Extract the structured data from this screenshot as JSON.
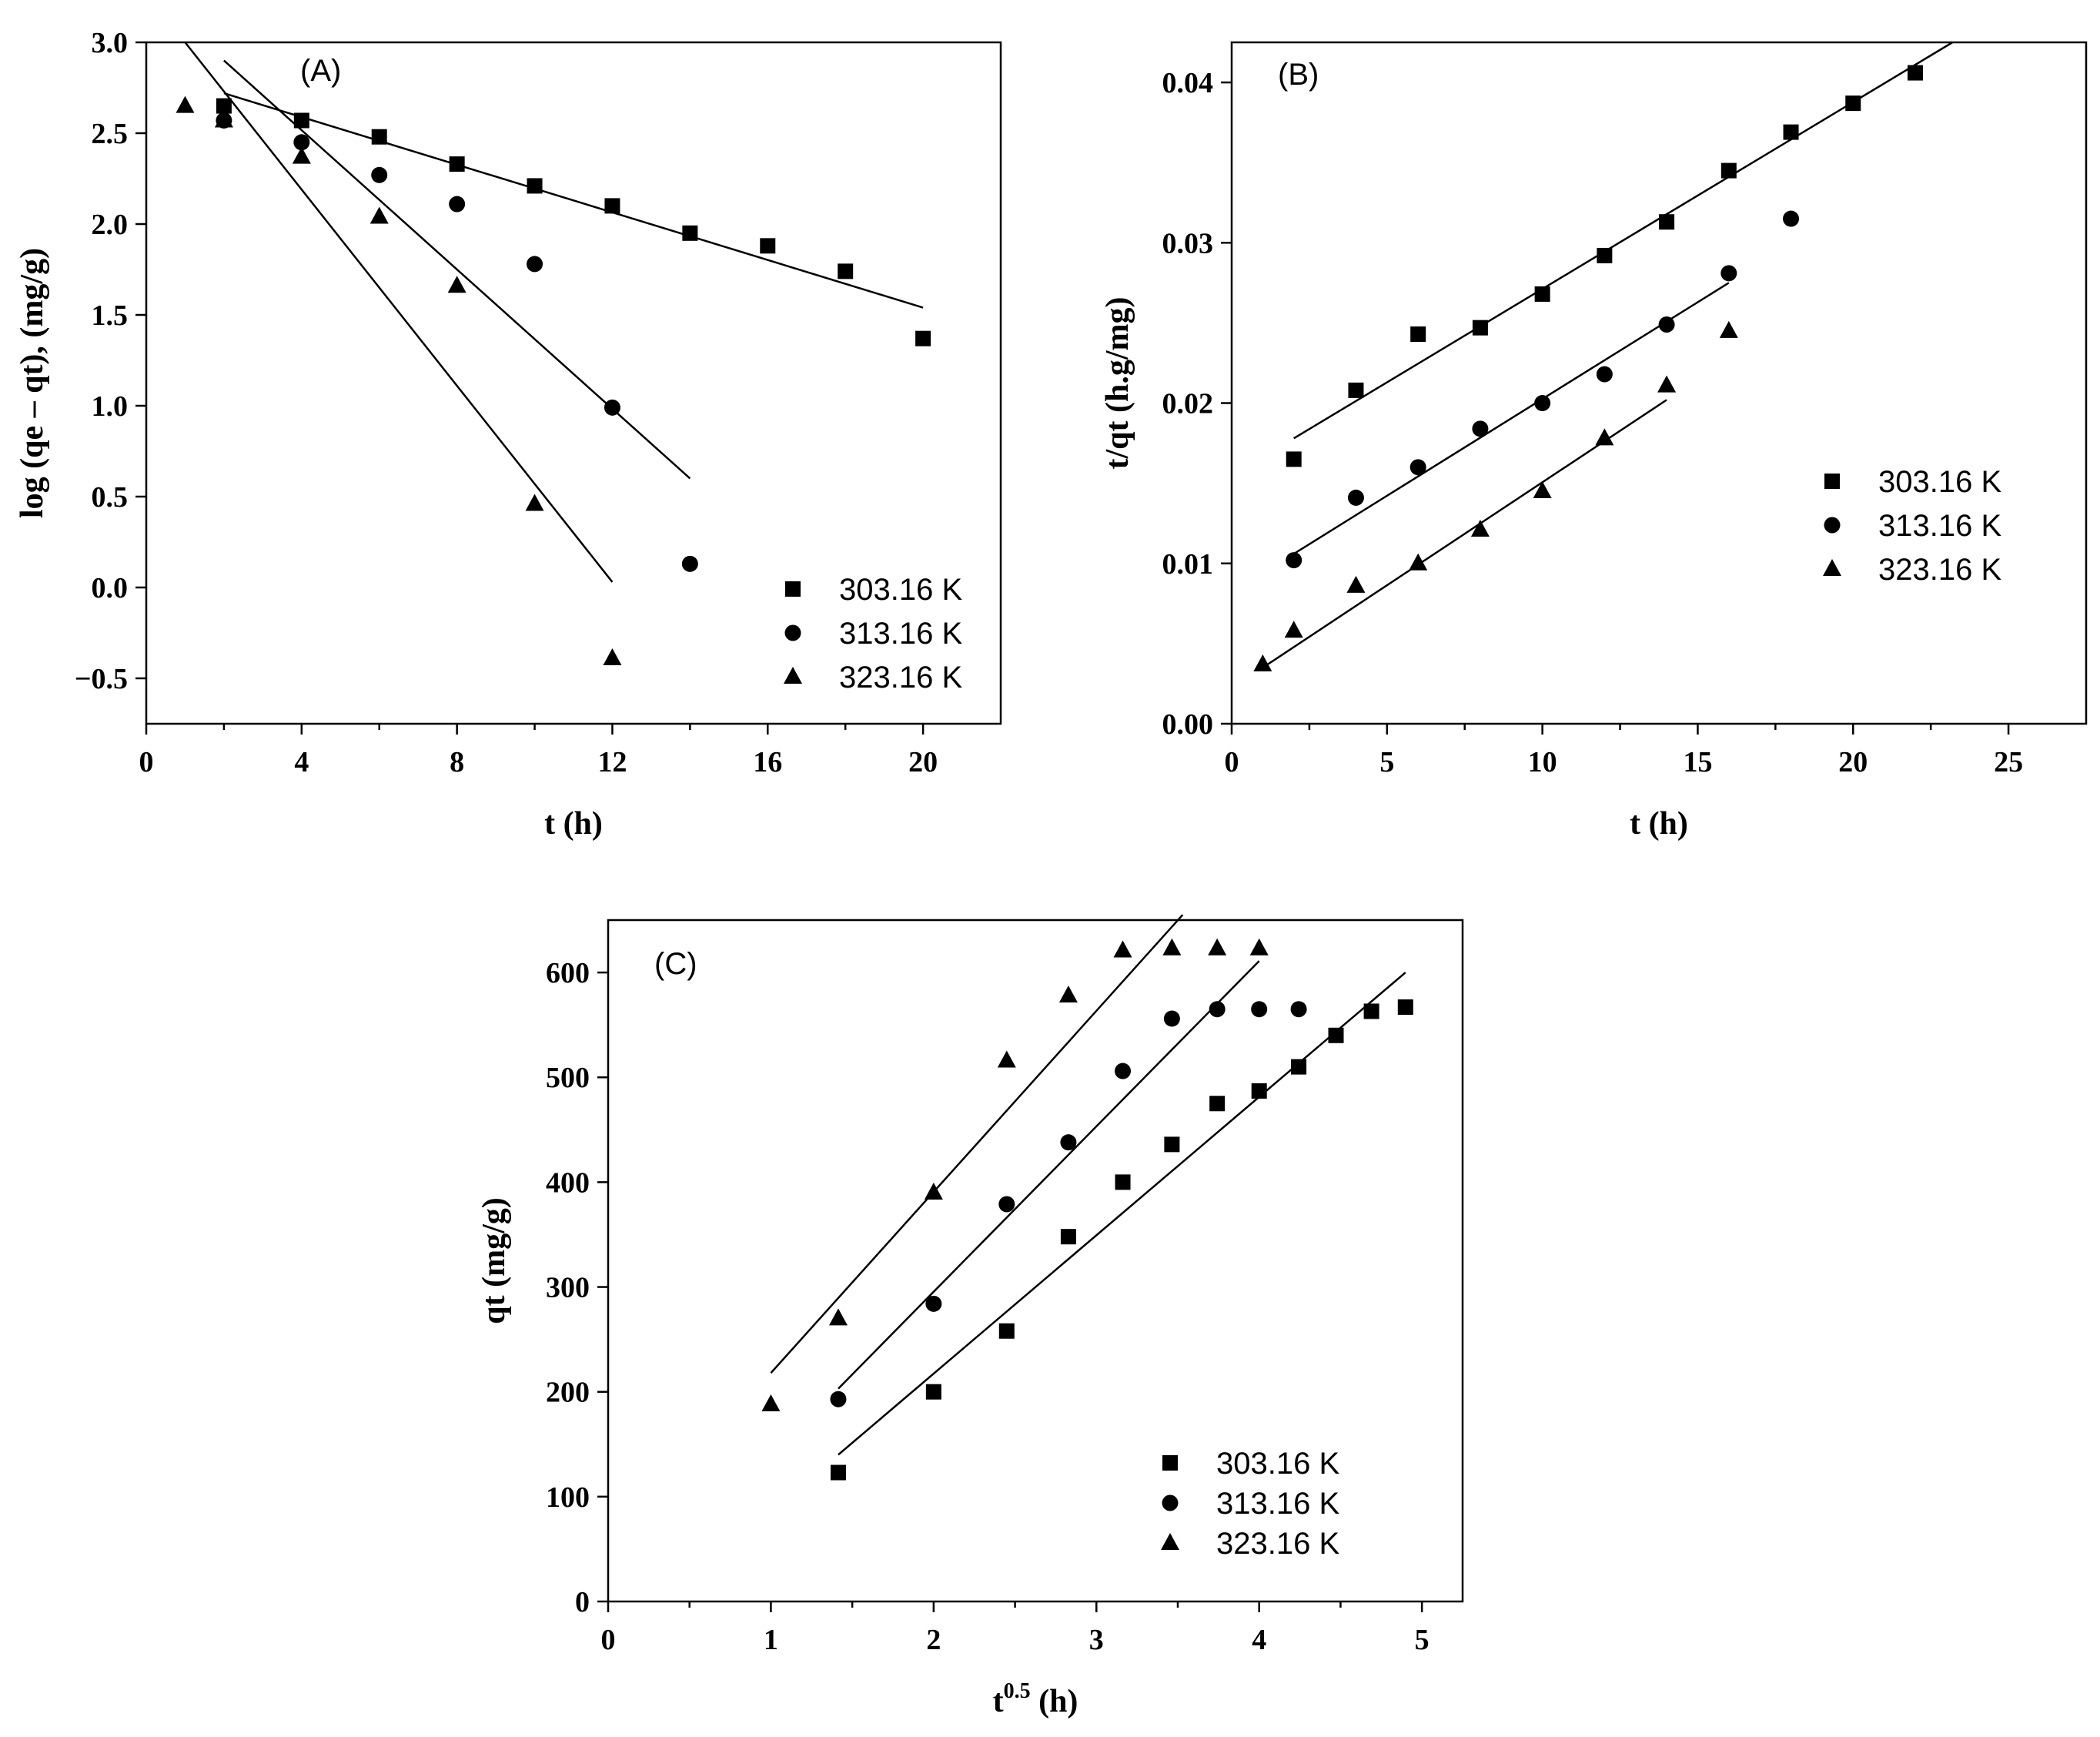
{
  "colors": {
    "background": "#ffffff",
    "ink": "#000000"
  },
  "chart_data": [
    {
      "panel": "A",
      "type": "scatter",
      "panel_label": "(A)",
      "xlabel": "t (h)",
      "ylabel": "log (qe – qt), (mg/g)",
      "xlim": [
        0,
        22
      ],
      "ylim": [
        -0.75,
        3.0
      ],
      "xticks": [
        0,
        4,
        8,
        12,
        16,
        20
      ],
      "xticklabels": [
        "0",
        "4",
        "8",
        "12",
        "16",
        "20"
      ],
      "xminor": [
        2,
        6,
        10,
        14,
        18
      ],
      "yticks": [
        -0.5,
        0.0,
        0.5,
        1.0,
        1.5,
        2.0,
        2.5,
        3.0
      ],
      "yticklabels": [
        "−0.5",
        "0.0",
        "0.5",
        "1.0",
        "1.5",
        "2.0",
        "2.5",
        "3.0"
      ],
      "legend_position": "bottom-right",
      "series": [
        {
          "name": "303.16 K",
          "label": "303.16 K",
          "marker": "square",
          "x": [
            2,
            4,
            6,
            8,
            10,
            12,
            14,
            16,
            18,
            20
          ],
          "y": [
            2.65,
            2.57,
            2.48,
            2.33,
            2.21,
            2.1,
            1.95,
            1.88,
            1.74,
            1.37
          ],
          "fit": {
            "x": [
              2,
              20
            ],
            "y": [
              2.72,
              1.54
            ]
          }
        },
        {
          "name": "313.16 K",
          "label": "313.16 K",
          "marker": "circle",
          "x": [
            2,
            4,
            6,
            8,
            10,
            12,
            14
          ],
          "y": [
            2.57,
            2.45,
            2.27,
            2.11,
            1.78,
            0.99,
            0.13
          ],
          "fit": {
            "x": [
              2,
              14
            ],
            "y": [
              2.9,
              0.6
            ]
          }
        },
        {
          "name": "323.16 K",
          "label": "323.16 K",
          "marker": "triangle",
          "x": [
            1,
            2,
            4,
            6,
            8,
            10,
            12
          ],
          "y": [
            2.65,
            2.57,
            2.37,
            2.04,
            1.66,
            0.46,
            -0.39
          ],
          "fit": {
            "x": [
              1,
              12
            ],
            "y": [
              3.0,
              0.03
            ]
          }
        }
      ]
    },
    {
      "panel": "B",
      "type": "scatter",
      "panel_label": "(B)",
      "xlabel": "t (h)",
      "ylabel": "t/qt (h.g/mg)",
      "xlim": [
        0,
        27.5
      ],
      "ylim": [
        0,
        0.0425
      ],
      "xticks": [
        0,
        5,
        10,
        15,
        20,
        25
      ],
      "xticklabels": [
        "0",
        "5",
        "10",
        "15",
        "20",
        "25"
      ],
      "xminor": [
        2.5,
        7.5,
        12.5,
        17.5,
        22.5
      ],
      "yticks": [
        0,
        0.01,
        0.02,
        0.03,
        0.04
      ],
      "yticklabels": [
        "0.00",
        "0.01",
        "0.02",
        "0.03",
        "0.04"
      ],
      "legend_position": "middle-right",
      "series": [
        {
          "name": "303.16 K",
          "label": "303.16 K",
          "marker": "square",
          "x": [
            2,
            4,
            6,
            8,
            10,
            12,
            14,
            16,
            18,
            20,
            22
          ],
          "y": [
            0.0165,
            0.0208,
            0.0243,
            0.0247,
            0.0268,
            0.0292,
            0.0313,
            0.0345,
            0.0369,
            0.0387,
            0.0406
          ],
          "fit": {
            "x": [
              2,
              23.2
            ],
            "y": [
              0.0178,
              0.0425
            ]
          }
        },
        {
          "name": "313.16 K",
          "label": "313.16 K",
          "marker": "circle",
          "x": [
            2,
            4,
            6,
            8,
            10,
            12,
            14,
            16,
            18
          ],
          "y": [
            0.0102,
            0.0141,
            0.016,
            0.0184,
            0.02,
            0.0218,
            0.0249,
            0.0281,
            0.0315
          ],
          "fit": {
            "x": [
              2,
              16
            ],
            "y": [
              0.0106,
              0.0275
            ]
          }
        },
        {
          "name": "323.16 K",
          "label": "323.16 K",
          "marker": "triangle",
          "x": [
            1,
            2,
            4,
            6,
            8,
            10,
            12,
            14,
            16
          ],
          "y": [
            0.0037,
            0.0058,
            0.0086,
            0.01,
            0.0121,
            0.0145,
            0.0178,
            0.0211,
            0.0245
          ],
          "fit": {
            "x": [
              1,
              14
            ],
            "y": [
              0.0035,
              0.0202
            ]
          }
        }
      ]
    },
    {
      "panel": "C",
      "type": "scatter",
      "panel_label": "(C)",
      "xlabel": "t",
      "xlabel_sup": "0.5",
      "xlabel_suffix": " (h)",
      "ylabel": "qt (mg/g)",
      "xlim": [
        0,
        5.25
      ],
      "ylim": [
        0,
        650
      ],
      "xticks": [
        0,
        1,
        2,
        3,
        4,
        5
      ],
      "xticklabels": [
        "0",
        "1",
        "2",
        "3",
        "4",
        "5"
      ],
      "xminor": [
        0.5,
        1.5,
        2.5,
        3.5,
        4.5
      ],
      "yticks": [
        0,
        100,
        200,
        300,
        400,
        500,
        600
      ],
      "yticklabels": [
        "0",
        "100",
        "200",
        "300",
        "400",
        "500",
        "600"
      ],
      "legend_position": "bottom-right",
      "series": [
        {
          "name": "303.16 K",
          "label": "303.16 K",
          "marker": "square",
          "x": [
            1.414,
            2.0,
            2.449,
            2.828,
            3.162,
            3.464,
            3.742,
            4.0,
            4.243,
            4.472,
            4.69,
            4.899
          ],
          "y": [
            123,
            200,
            258,
            348,
            400,
            436,
            475,
            487,
            510,
            540,
            563,
            567
          ],
          "fit": {
            "x": [
              1.414,
              4.899
            ],
            "y": [
              140,
              600
            ]
          }
        },
        {
          "name": "313.16 K",
          "label": "313.16 K",
          "marker": "circle",
          "x": [
            1.414,
            2.0,
            2.449,
            2.828,
            3.162,
            3.464,
            3.742,
            4.0,
            4.243
          ],
          "y": [
            193,
            284,
            379,
            438,
            506,
            556,
            565,
            565,
            565
          ],
          "fit": {
            "x": [
              1.414,
              4.0
            ],
            "y": [
              203,
              611
            ]
          }
        },
        {
          "name": "323.16 K",
          "label": "323.16 K",
          "marker": "triangle",
          "x": [
            1.0,
            1.414,
            2.0,
            2.449,
            2.828,
            3.162,
            3.464,
            3.742,
            4.0
          ],
          "y": [
            188,
            270,
            390,
            516,
            578,
            621,
            623,
            623,
            623
          ],
          "fit": {
            "x": [
              1.0,
              3.53
            ],
            "y": [
              218,
              655
            ]
          }
        }
      ]
    }
  ]
}
